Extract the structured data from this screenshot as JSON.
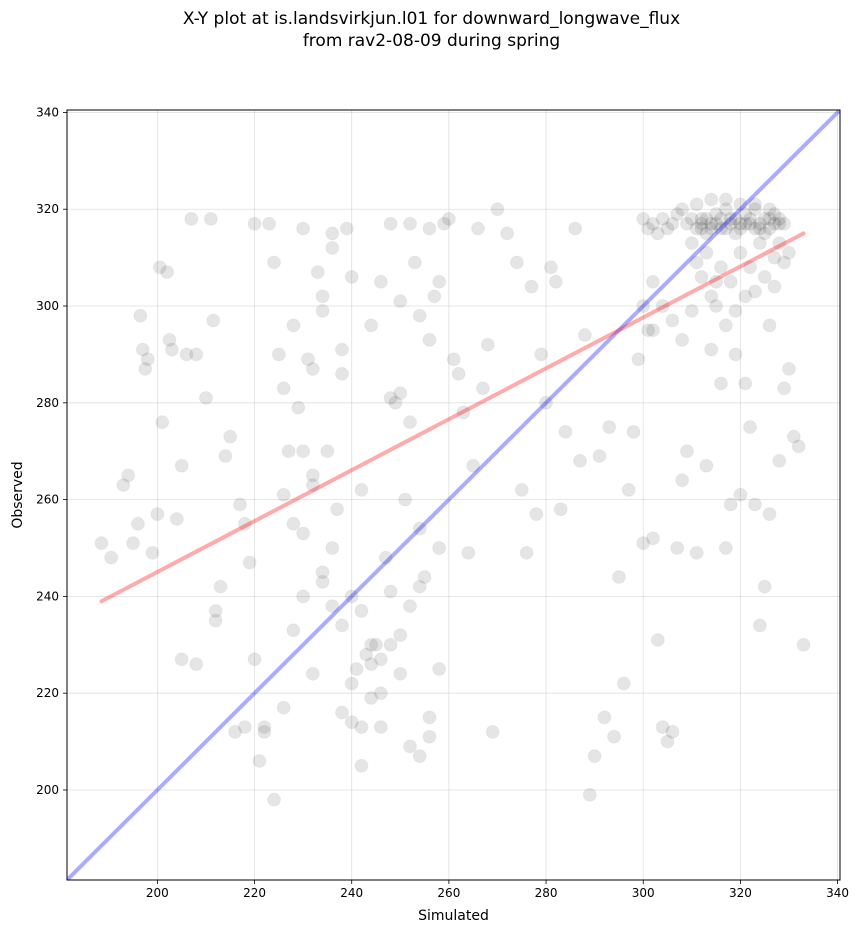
{
  "chart_data": {
    "type": "scatter",
    "title_lines": [
      "X-Y plot at is.landsvirkjun.l01 for downward_longwave_flux",
      "from rav2-08-09 during spring"
    ],
    "xlabel": "Simulated",
    "ylabel": "Observed",
    "xlim": [
      181.4,
      340.5
    ],
    "ylim": [
      181.4,
      340.5
    ],
    "xticks": [
      200,
      220,
      240,
      260,
      280,
      300,
      320,
      340
    ],
    "yticks": [
      200,
      220,
      240,
      260,
      280,
      300,
      320,
      340
    ],
    "grid": true,
    "point_color": "#000000",
    "identity_line": {
      "x": [
        181.4,
        340.5
      ],
      "y": [
        181.4,
        340.5
      ],
      "color": "#0000ff"
    },
    "regression_line": {
      "x": [
        188.5,
        333
      ],
      "y": [
        239,
        315
      ],
      "color": "#ff0000"
    },
    "points": [
      [
        188.5,
        251
      ],
      [
        190.5,
        248
      ],
      [
        193,
        263
      ],
      [
        194,
        265
      ],
      [
        195,
        251
      ],
      [
        196,
        255
      ],
      [
        196.5,
        298
      ],
      [
        197,
        291
      ],
      [
        197.5,
        287
      ],
      [
        198,
        289
      ],
      [
        199,
        249
      ],
      [
        200,
        257
      ],
      [
        200.5,
        308
      ],
      [
        201,
        276
      ],
      [
        202,
        307
      ],
      [
        202.5,
        293
      ],
      [
        203,
        291
      ],
      [
        204,
        256
      ],
      [
        205,
        267
      ],
      [
        206,
        290
      ],
      [
        207,
        318
      ],
      [
        208,
        290
      ],
      [
        210,
        281
      ],
      [
        211,
        318
      ],
      [
        211.5,
        297
      ],
      [
        212,
        237
      ],
      [
        213,
        242
      ],
      [
        214,
        269
      ],
      [
        215,
        273
      ],
      [
        216,
        212
      ],
      [
        217,
        259
      ],
      [
        218,
        255
      ],
      [
        219,
        247
      ],
      [
        220,
        317
      ],
      [
        221,
        206
      ],
      [
        222,
        213
      ],
      [
        223,
        317
      ],
      [
        224,
        309
      ],
      [
        225,
        290
      ],
      [
        226,
        283
      ],
      [
        227,
        270
      ],
      [
        228,
        296
      ],
      [
        229,
        279
      ],
      [
        230,
        316
      ],
      [
        231,
        289
      ],
      [
        232,
        265
      ],
      [
        233,
        307
      ],
      [
        234,
        299
      ],
      [
        235,
        270
      ],
      [
        236,
        315
      ],
      [
        237,
        258
      ],
      [
        238,
        286
      ],
      [
        239,
        316
      ],
      [
        240,
        240
      ],
      [
        241,
        225
      ],
      [
        242,
        237
      ],
      [
        243,
        228
      ],
      [
        244,
        226
      ],
      [
        245,
        230
      ],
      [
        246,
        220
      ],
      [
        247,
        248
      ],
      [
        248,
        317
      ],
      [
        249,
        280
      ],
      [
        250,
        282
      ],
      [
        251,
        260
      ],
      [
        252,
        276
      ],
      [
        253,
        309
      ],
      [
        254,
        254
      ],
      [
        255,
        244
      ],
      [
        256,
        316
      ],
      [
        257,
        302
      ],
      [
        258,
        250
      ],
      [
        259,
        317
      ],
      [
        260,
        318
      ],
      [
        261,
        289
      ],
      [
        262,
        286
      ],
      [
        263,
        278
      ],
      [
        264,
        249
      ],
      [
        265,
        267
      ],
      [
        266,
        316
      ],
      [
        267,
        283
      ],
      [
        268,
        292
      ],
      [
        269,
        212
      ],
      [
        270,
        320
      ],
      [
        272,
        315
      ],
      [
        274,
        309
      ],
      [
        275,
        262
      ],
      [
        276,
        249
      ],
      [
        277,
        304
      ],
      [
        278,
        257
      ],
      [
        279,
        290
      ],
      [
        280,
        280
      ],
      [
        281,
        308
      ],
      [
        282,
        305
      ],
      [
        283,
        258
      ],
      [
        284,
        274
      ],
      [
        286,
        316
      ],
      [
        287,
        268
      ],
      [
        288,
        294
      ],
      [
        289,
        199
      ],
      [
        290,
        207
      ],
      [
        291,
        269
      ],
      [
        292,
        215
      ],
      [
        293,
        275
      ],
      [
        294,
        211
      ],
      [
        295,
        244
      ],
      [
        296,
        222
      ],
      [
        297,
        262
      ],
      [
        298,
        274
      ],
      [
        299,
        289
      ],
      [
        300,
        251
      ],
      [
        301,
        295
      ],
      [
        302,
        252
      ],
      [
        303,
        231
      ],
      [
        304,
        213
      ],
      [
        305,
        210
      ],
      [
        306,
        212
      ],
      [
        307,
        250
      ],
      [
        308,
        264
      ],
      [
        309,
        270
      ],
      [
        310,
        299
      ],
      [
        311,
        249
      ],
      [
        312,
        318
      ],
      [
        313,
        267
      ],
      [
        314,
        291
      ],
      [
        315,
        305
      ],
      [
        316,
        284
      ],
      [
        317,
        250
      ],
      [
        318,
        259
      ],
      [
        319,
        290
      ],
      [
        320,
        261
      ],
      [
        321,
        284
      ],
      [
        322,
        275
      ],
      [
        323,
        259
      ],
      [
        324,
        234
      ],
      [
        325,
        242
      ],
      [
        326,
        257
      ],
      [
        327,
        310
      ],
      [
        328,
        268
      ],
      [
        329,
        283
      ],
      [
        330,
        287
      ],
      [
        331,
        273
      ],
      [
        332,
        271
      ],
      [
        333,
        230
      ],
      [
        205,
        227
      ],
      [
        208,
        226
      ],
      [
        212,
        235
      ],
      [
        218,
        213
      ],
      [
        220,
        227
      ],
      [
        222,
        212
      ],
      [
        224,
        198
      ],
      [
        226,
        217
      ],
      [
        228,
        233
      ],
      [
        230,
        240
      ],
      [
        232,
        224
      ],
      [
        234,
        245
      ],
      [
        236,
        238
      ],
      [
        238,
        216
      ],
      [
        240,
        222
      ],
      [
        242,
        213
      ],
      [
        244,
        230
      ],
      [
        246,
        213
      ],
      [
        248,
        241
      ],
      [
        250,
        232
      ],
      [
        252,
        238
      ],
      [
        254,
        242
      ],
      [
        256,
        211
      ],
      [
        258,
        225
      ],
      [
        230,
        270
      ],
      [
        232,
        287
      ],
      [
        234,
        302
      ],
      [
        236,
        312
      ],
      [
        238,
        291
      ],
      [
        240,
        306
      ],
      [
        242,
        262
      ],
      [
        244,
        296
      ],
      [
        246,
        305
      ],
      [
        248,
        281
      ],
      [
        250,
        301
      ],
      [
        252,
        317
      ],
      [
        254,
        298
      ],
      [
        256,
        293
      ],
      [
        258,
        305
      ],
      [
        226,
        261
      ],
      [
        228,
        255
      ],
      [
        230,
        253
      ],
      [
        232,
        263
      ],
      [
        234,
        243
      ],
      [
        236,
        250
      ],
      [
        238,
        234
      ],
      [
        240,
        214
      ],
      [
        242,
        205
      ],
      [
        244,
        219
      ],
      [
        246,
        227
      ],
      [
        248,
        230
      ],
      [
        250,
        224
      ],
      [
        252,
        209
      ],
      [
        254,
        207
      ],
      [
        256,
        215
      ],
      [
        309,
        317
      ],
      [
        310,
        318
      ],
      [
        311,
        316
      ],
      [
        312,
        317
      ],
      [
        313,
        318
      ],
      [
        314,
        316
      ],
      [
        315,
        317
      ],
      [
        316,
        318
      ],
      [
        317,
        316
      ],
      [
        318,
        317
      ],
      [
        319,
        318
      ],
      [
        320,
        316
      ],
      [
        321,
        317
      ],
      [
        322,
        318
      ],
      [
        323,
        316
      ],
      [
        324,
        317
      ],
      [
        325,
        318
      ],
      [
        326,
        316
      ],
      [
        327,
        317
      ],
      [
        328,
        318
      ],
      [
        329,
        317
      ],
      [
        314,
        317
      ],
      [
        316,
        316
      ],
      [
        318,
        318
      ],
      [
        320,
        317
      ],
      [
        322,
        317
      ],
      [
        324,
        316
      ],
      [
        326,
        318
      ],
      [
        328,
        317
      ],
      [
        312,
        316
      ],
      [
        313,
        315
      ],
      [
        315,
        319
      ],
      [
        317,
        320
      ],
      [
        319,
        315
      ],
      [
        321,
        319
      ],
      [
        323,
        320
      ],
      [
        325,
        315
      ],
      [
        327,
        319
      ],
      [
        310,
        313
      ],
      [
        311,
        309
      ],
      [
        312,
        306
      ],
      [
        313,
        311
      ],
      [
        314,
        302
      ],
      [
        315,
        300
      ],
      [
        316,
        308
      ],
      [
        317,
        296
      ],
      [
        318,
        305
      ],
      [
        319,
        299
      ],
      [
        320,
        311
      ],
      [
        321,
        302
      ],
      [
        322,
        308
      ],
      [
        323,
        303
      ],
      [
        324,
        313
      ],
      [
        325,
        306
      ],
      [
        326,
        296
      ],
      [
        327,
        304
      ],
      [
        328,
        313
      ],
      [
        329,
        309
      ],
      [
        330,
        311
      ],
      [
        308,
        320
      ],
      [
        311,
        321
      ],
      [
        314,
        322
      ],
      [
        317,
        322
      ],
      [
        320,
        321
      ],
      [
        323,
        321
      ],
      [
        326,
        320
      ],
      [
        300,
        318
      ],
      [
        301,
        316
      ],
      [
        302,
        317
      ],
      [
        303,
        315
      ],
      [
        304,
        318
      ],
      [
        305,
        316
      ],
      [
        306,
        317
      ],
      [
        307,
        319
      ],
      [
        302,
        305
      ],
      [
        304,
        300
      ],
      [
        306,
        297
      ],
      [
        308,
        293
      ],
      [
        300,
        300
      ],
      [
        302,
        295
      ]
    ]
  }
}
